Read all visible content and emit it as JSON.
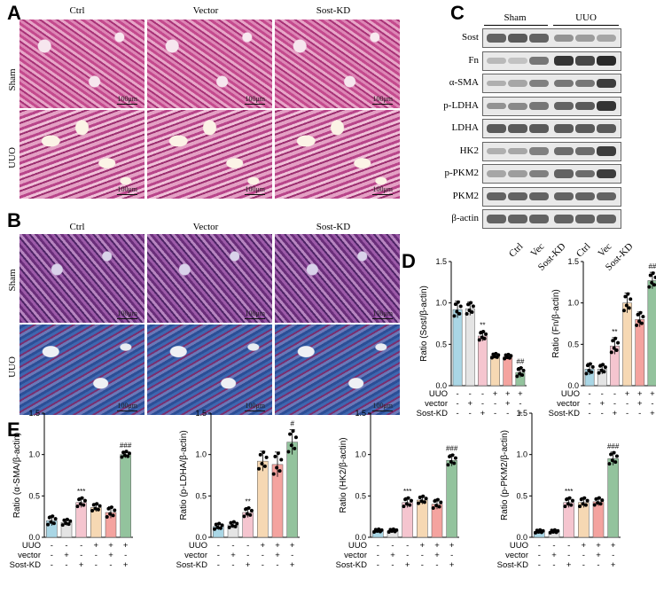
{
  "panels": {
    "A": "A",
    "B": "B",
    "C": "C",
    "D": "D",
    "E": "E"
  },
  "histology": {
    "columns": [
      "Ctrl",
      "Vector",
      "Sost-KD"
    ],
    "rows": [
      "Sham",
      "UUO"
    ],
    "scale_bar": "100μm"
  },
  "blot": {
    "groups": [
      "Sham",
      "UUO"
    ],
    "lanes": [
      "Ctrl",
      "Vec",
      "Sost-KD",
      "Ctrl",
      "Vec",
      "Sost-KD"
    ],
    "proteins": [
      "Sost",
      "Fn",
      "α-SMA",
      "p-LDHA",
      "LDHA",
      "HK2",
      "p-PKM2",
      "PKM2",
      "β-actin"
    ],
    "intensities": [
      [
        0.7,
        0.75,
        0.7,
        0.45,
        0.4,
        0.35
      ],
      [
        0.25,
        0.2,
        0.6,
        0.95,
        0.85,
        1.0
      ],
      [
        0.3,
        0.35,
        0.55,
        0.6,
        0.6,
        0.9
      ],
      [
        0.45,
        0.5,
        0.6,
        0.7,
        0.75,
        0.95
      ],
      [
        0.75,
        0.75,
        0.75,
        0.75,
        0.75,
        0.75
      ],
      [
        0.3,
        0.35,
        0.55,
        0.65,
        0.65,
        0.9
      ],
      [
        0.35,
        0.4,
        0.55,
        0.7,
        0.65,
        0.9
      ],
      [
        0.7,
        0.7,
        0.7,
        0.7,
        0.7,
        0.7
      ],
      [
        0.7,
        0.7,
        0.7,
        0.7,
        0.7,
        0.7
      ]
    ]
  },
  "design": {
    "rows": [
      "UUO",
      "vector",
      "Sost-KD"
    ],
    "signs": [
      [
        "-",
        "-",
        "-",
        "+",
        "+",
        "+"
      ],
      [
        "-",
        "+",
        "-",
        "-",
        "+",
        "-"
      ],
      [
        "-",
        "-",
        "+",
        "-",
        "-",
        "+"
      ]
    ]
  },
  "colors": [
    "#a9d6e5",
    "#e4e4e4",
    "#f5c5cf",
    "#f6d8b3",
    "#f4a39f",
    "#93c39d"
  ],
  "chart_data": [
    {
      "type": "bar",
      "ylabel": "Ratio (Sost/β-actin)",
      "ylim": [
        0,
        1.5
      ],
      "ticks": [
        "0.0",
        "0.5",
        "1.0",
        "1.5"
      ],
      "values": [
        0.92,
        0.93,
        0.6,
        0.36,
        0.35,
        0.16
      ],
      "errors": [
        0.1,
        0.08,
        0.06,
        0.03,
        0.03,
        0.06
      ],
      "annotations": [
        "",
        "",
        "**",
        "",
        "",
        "##"
      ]
    },
    {
      "type": "bar",
      "ylabel": "Ratio (Fn/β-actin)",
      "ylim": [
        0,
        1.5
      ],
      "ticks": [
        "0.0",
        "0.5",
        "1.0",
        "1.5"
      ],
      "values": [
        0.2,
        0.2,
        0.48,
        1.0,
        0.8,
        1.27
      ],
      "errors": [
        0.07,
        0.06,
        0.1,
        0.12,
        0.09,
        0.1
      ],
      "annotations": [
        "",
        "",
        "**",
        "",
        "",
        "##"
      ]
    },
    {
      "type": "bar",
      "ylabel": "Ratio (α-SMA/β-actin)",
      "ylim": [
        0,
        1.5
      ],
      "ticks": [
        "0.0",
        "0.5",
        "1.0",
        "1.5"
      ],
      "values": [
        0.2,
        0.18,
        0.42,
        0.36,
        0.3,
        1.0
      ],
      "errors": [
        0.06,
        0.04,
        0.06,
        0.05,
        0.07,
        0.04
      ],
      "annotations": [
        "",
        "",
        "***",
        "",
        "",
        "###"
      ]
    },
    {
      "type": "bar",
      "ylabel": "Ratio (p-LDHA/β-actin)",
      "ylim": [
        0,
        1.5
      ],
      "ticks": [
        "0.0",
        "0.5",
        "1.0",
        "1.5"
      ],
      "values": [
        0.13,
        0.15,
        0.3,
        0.92,
        0.88,
        1.15
      ],
      "errors": [
        0.04,
        0.04,
        0.06,
        0.12,
        0.15,
        0.15
      ],
      "annotations": [
        "",
        "",
        "**",
        "",
        "",
        "#"
      ]
    },
    {
      "type": "bar",
      "ylabel": "Ratio (HK2/β-actin)",
      "ylim": [
        0,
        1.5
      ],
      "ticks": [
        "0.0",
        "0.5",
        "1.0",
        "1.5"
      ],
      "values": [
        0.08,
        0.08,
        0.42,
        0.45,
        0.4,
        0.93
      ],
      "errors": [
        0.02,
        0.02,
        0.06,
        0.05,
        0.06,
        0.07
      ],
      "annotations": [
        "",
        "",
        "***",
        "",
        "",
        "###"
      ]
    },
    {
      "type": "bar",
      "ylabel": "Ratio (p-PKM2/β-actin)",
      "ylim": [
        0,
        1.5
      ],
      "ticks": [
        "0.0",
        "0.5",
        "1.0",
        "1.5"
      ],
      "values": [
        0.07,
        0.07,
        0.42,
        0.42,
        0.43,
        0.95
      ],
      "errors": [
        0.02,
        0.02,
        0.06,
        0.06,
        0.05,
        0.08
      ],
      "annotations": [
        "",
        "",
        "***",
        "",
        "",
        "###"
      ]
    }
  ]
}
